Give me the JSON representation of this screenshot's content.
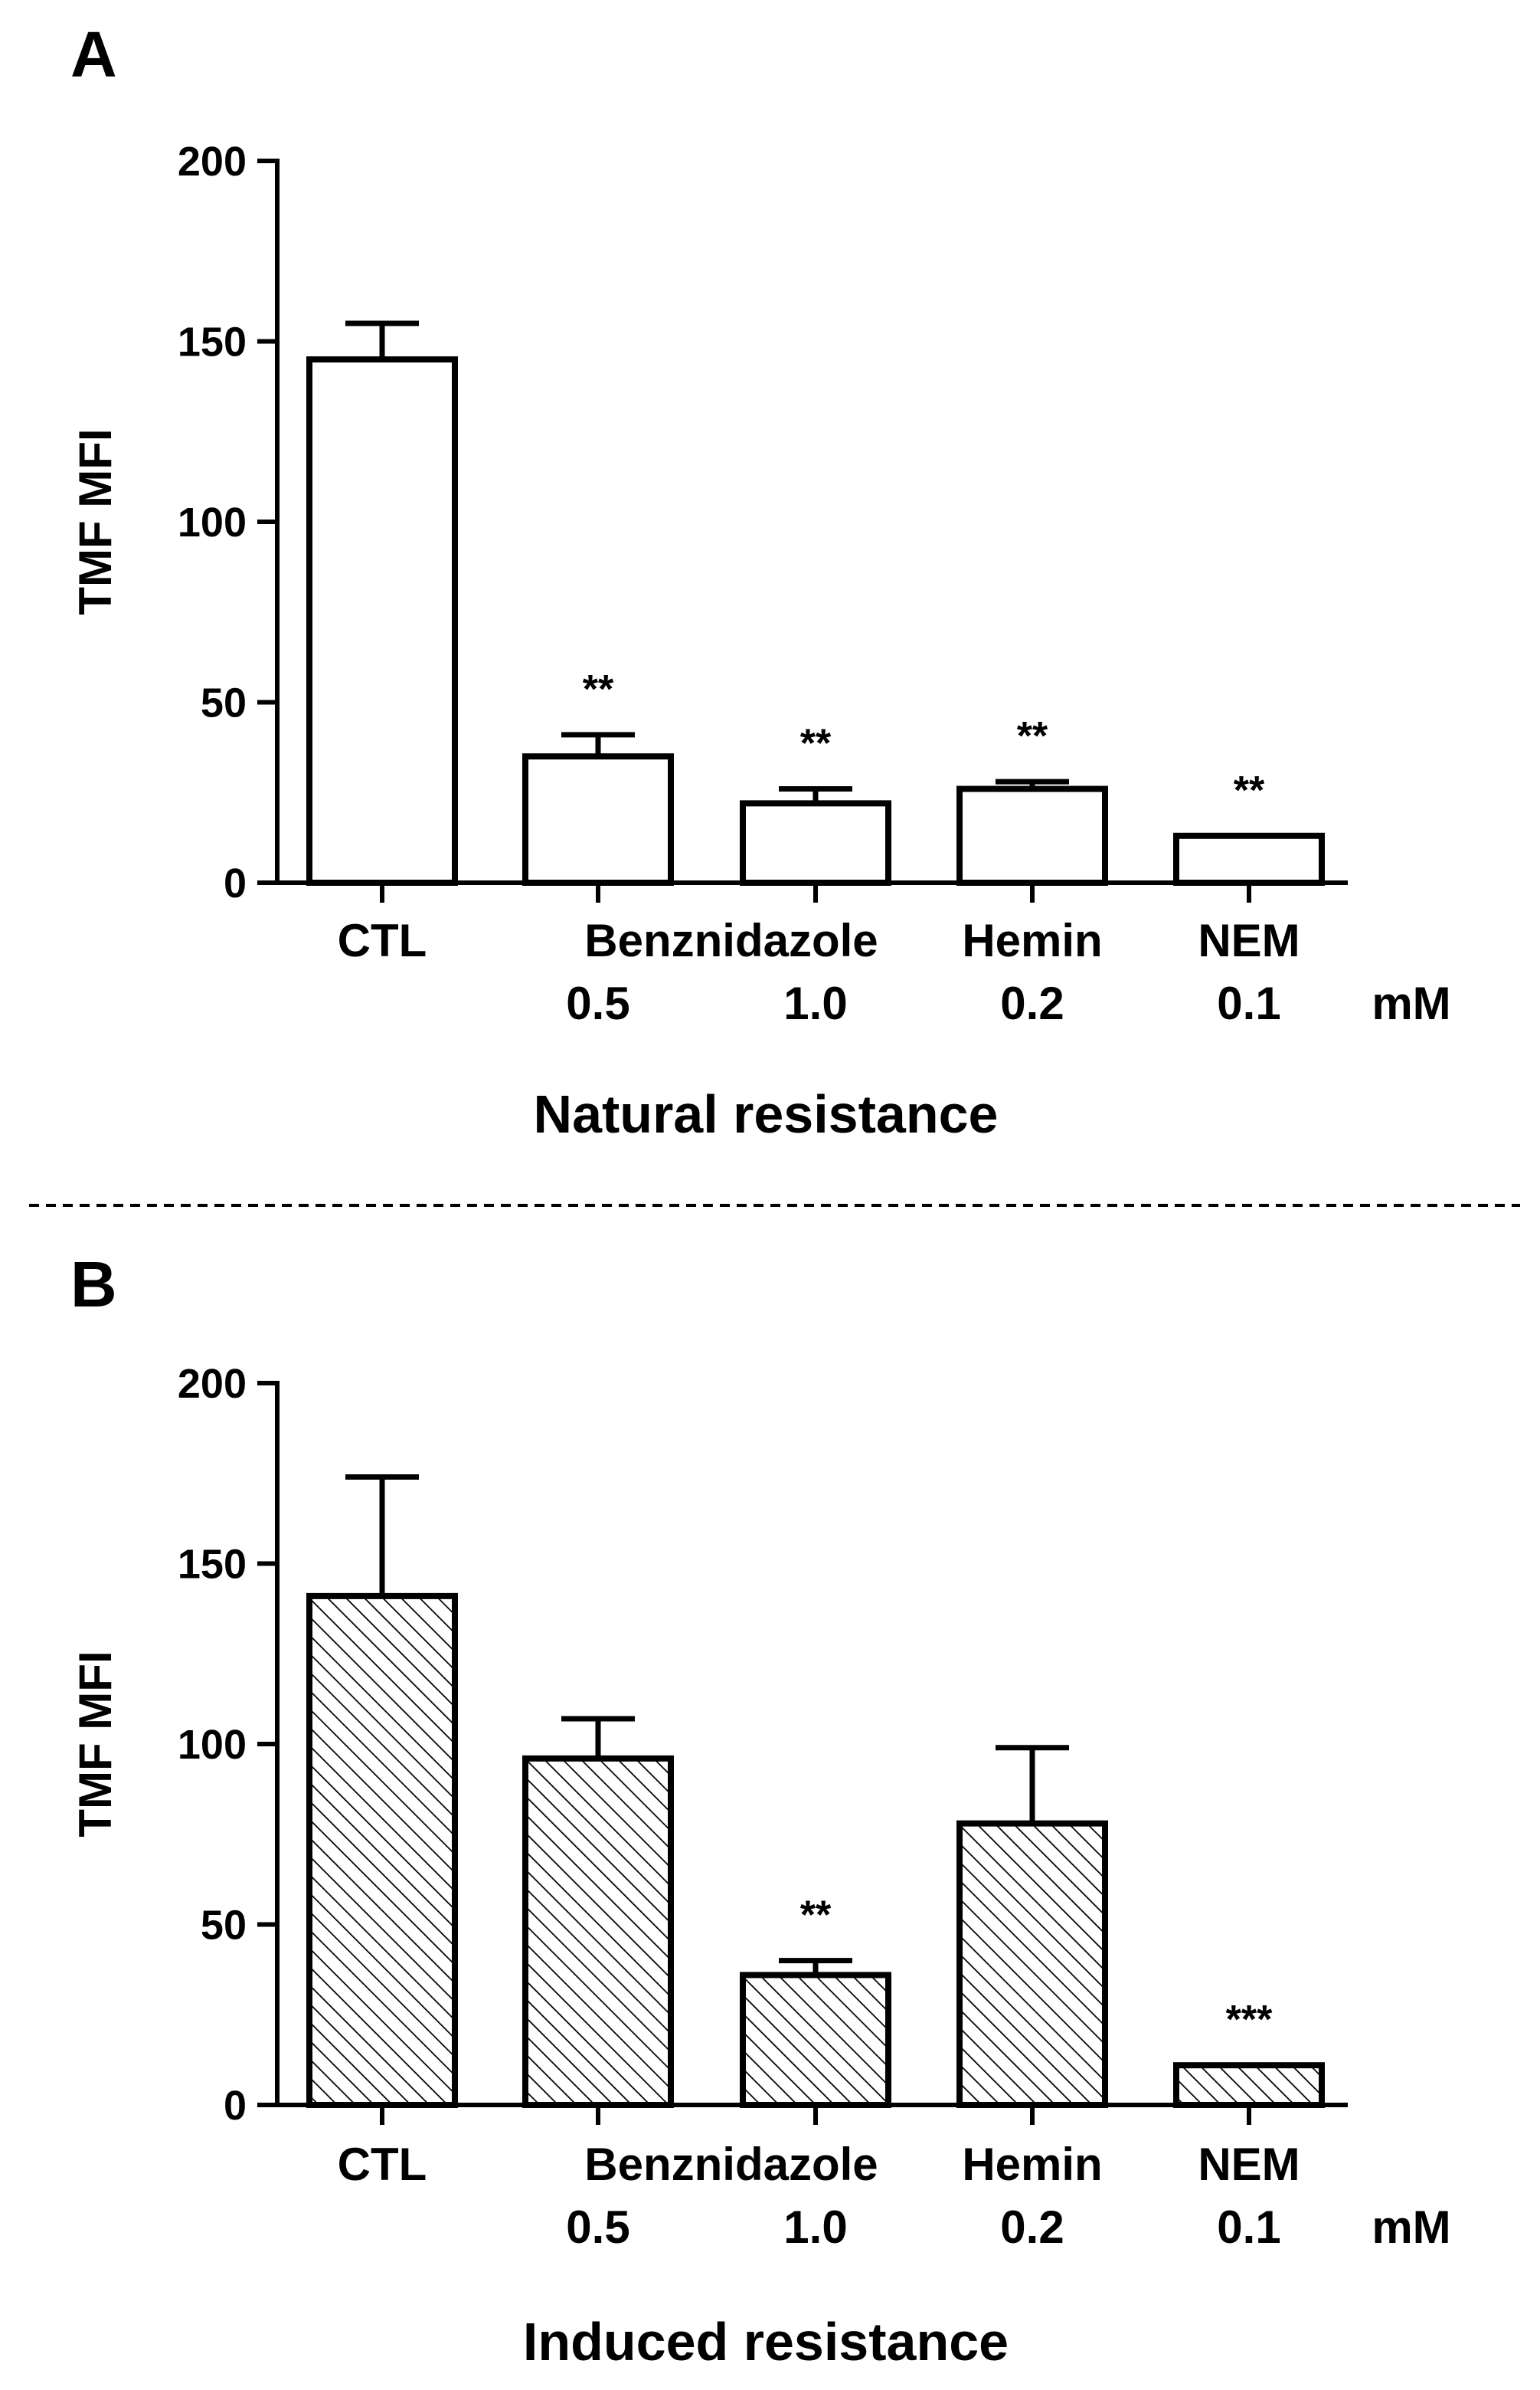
{
  "colors": {
    "axis": "#000000",
    "bar_fill_plain": "#ffffff",
    "bar_outline": "#000000",
    "hatch": "#000000",
    "background": "#ffffff"
  },
  "chart_data": [
    {
      "type": "bar",
      "panel_label": "A",
      "title": "",
      "ylabel": "TMF MFI",
      "xlabel": "Natural resistance",
      "ylim": [
        0,
        200
      ],
      "yticks": [
        0,
        50,
        100,
        150,
        200
      ],
      "categories": [
        "CTL",
        "Benznidazole 0.5",
        "Benznidazole 1.0",
        "Hemin 0.2",
        "NEM 0.1"
      ],
      "values": [
        145,
        35,
        22,
        26,
        13
      ],
      "errors": [
        10,
        6,
        4,
        2,
        0
      ],
      "significance": [
        "",
        "**",
        "**",
        "**",
        "**"
      ],
      "fill": "plain"
    },
    {
      "type": "bar",
      "panel_label": "B",
      "title": "",
      "ylabel": "TMF MFI",
      "xlabel": "Induced resistance",
      "ylim": [
        0,
        200
      ],
      "yticks": [
        0,
        50,
        100,
        150,
        200
      ],
      "categories": [
        "CTL",
        "Benznidazole 0.5",
        "Benznidazole 1.0",
        "Hemin 0.2",
        "NEM 0.1"
      ],
      "values": [
        141,
        96,
        36,
        78,
        11
      ],
      "errors": [
        33,
        11,
        4,
        21,
        0
      ],
      "significance": [
        "",
        "",
        "**",
        "",
        "***"
      ],
      "fill": "hatched"
    }
  ],
  "x_axis_labels": {
    "top_row": [
      "CTL",
      "Benznidazole",
      "Hemin",
      "NEM"
    ],
    "bottom_row": [
      "",
      "0.5",
      "1.0",
      "0.2",
      "0.1"
    ],
    "unit": "mM"
  }
}
